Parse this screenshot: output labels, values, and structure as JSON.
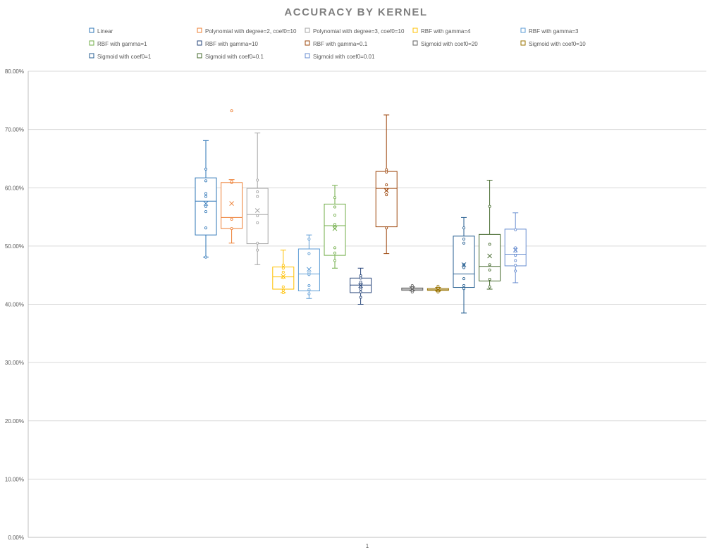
{
  "chart_data": {
    "type": "box",
    "title": "ACCURACY BY KERNEL",
    "categories": [
      "1"
    ],
    "xlabel": "",
    "ylabel": "",
    "ylim": [
      0,
      0.8
    ],
    "y_ticks": [
      0,
      0.1,
      0.2,
      0.3,
      0.4,
      0.5,
      0.6,
      0.7,
      0.8
    ],
    "y_tick_labels": [
      "0.00%",
      "10.00%",
      "20.00%",
      "30.00%",
      "40.00%",
      "50.00%",
      "60.00%",
      "70.00%",
      "80.00%"
    ],
    "grid": true,
    "legend_position": "top",
    "series": [
      {
        "name": "Linear",
        "color": "#2e75b6",
        "whisker_low": 0.481,
        "q1": 0.519,
        "median": 0.577,
        "q3": 0.617,
        "whisker_high": 0.681,
        "mean": 0.573,
        "outliers": [],
        "points": [
          0.481,
          0.531,
          0.559,
          0.568,
          0.585,
          0.59,
          0.612,
          0.632
        ]
      },
      {
        "name": "Polynomial with degree=2,  coef0=10",
        "color": "#ed7d31",
        "whisker_low": 0.505,
        "q1": 0.53,
        "median": 0.549,
        "q3": 0.609,
        "whisker_high": 0.614,
        "mean": 0.573,
        "outliers": [
          0.732
        ],
        "points": [
          0.53,
          0.546,
          0.609,
          0.611
        ]
      },
      {
        "name": "Polynomial with degree=3,  coef0=10",
        "color": "#a5a5a5",
        "whisker_low": 0.468,
        "q1": 0.504,
        "median": 0.554,
        "q3": 0.599,
        "whisker_high": 0.694,
        "mean": 0.561,
        "outliers": [],
        "points": [
          0.493,
          0.505,
          0.54,
          0.552,
          0.585,
          0.593,
          0.613
        ]
      },
      {
        "name": "RBF with gamma=4",
        "color": "#ffc000",
        "whisker_low": 0.42,
        "q1": 0.426,
        "median": 0.447,
        "q3": 0.464,
        "whisker_high": 0.493,
        "mean": 0.448,
        "outliers": [],
        "points": [
          0.42,
          0.424,
          0.43,
          0.446,
          0.455,
          0.462,
          0.467
        ]
      },
      {
        "name": "RBF with gamma=3",
        "color": "#5b9bd5",
        "whisker_low": 0.41,
        "q1": 0.423,
        "median": 0.452,
        "q3": 0.495,
        "whisker_high": 0.519,
        "mean": 0.46,
        "outliers": [],
        "points": [
          0.418,
          0.425,
          0.432,
          0.451,
          0.454,
          0.487,
          0.512
        ]
      },
      {
        "name": "RBF with gamma=1",
        "color": "#70ad47",
        "whisker_low": 0.462,
        "q1": 0.484,
        "median": 0.535,
        "q3": 0.572,
        "whisker_high": 0.604,
        "mean": 0.53,
        "outliers": [],
        "points": [
          0.475,
          0.488,
          0.497,
          0.532,
          0.537,
          0.553,
          0.567,
          0.583
        ]
      },
      {
        "name": "RBF with gamma=10",
        "color": "#264478",
        "whisker_low": 0.4,
        "q1": 0.42,
        "median": 0.433,
        "q3": 0.445,
        "whisker_high": 0.462,
        "mean": 0.432,
        "outliers": [],
        "points": [
          0.412,
          0.421,
          0.426,
          0.43,
          0.435,
          0.438,
          0.445,
          0.449
        ]
      },
      {
        "name": "RBF with gamma=0.1",
        "color": "#9e480e",
        "whisker_low": 0.487,
        "q1": 0.533,
        "median": 0.599,
        "q3": 0.628,
        "whisker_high": 0.725,
        "mean": 0.595,
        "outliers": [],
        "points": [
          0.531,
          0.588,
          0.597,
          0.605,
          0.627,
          0.631
        ]
      },
      {
        "name": "Sigmoid with coef0=20",
        "color": "#636363",
        "whisker_low": 0.423,
        "q1": 0.424,
        "median": 0.426,
        "q3": 0.428,
        "whisker_high": 0.43,
        "mean": 0.426,
        "outliers": [],
        "points": [
          0.421,
          0.424,
          0.428,
          0.432
        ]
      },
      {
        "name": "Sigmoid with coef0=10",
        "color": "#997300",
        "whisker_low": 0.423,
        "q1": 0.424,
        "median": 0.425,
        "q3": 0.427,
        "whisker_high": 0.429,
        "mean": 0.425,
        "outliers": [],
        "points": [
          0.421,
          0.424,
          0.427,
          0.431
        ]
      },
      {
        "name": "Sigmoid with coef0=1",
        "color": "#255e91",
        "whisker_low": 0.385,
        "q1": 0.429,
        "median": 0.452,
        "q3": 0.517,
        "whisker_high": 0.549,
        "mean": 0.468,
        "outliers": [],
        "points": [
          0.427,
          0.432,
          0.444,
          0.463,
          0.468,
          0.505,
          0.512,
          0.531
        ]
      },
      {
        "name": "Sigmoid with coef0=0.1",
        "color": "#43682b",
        "whisker_low": 0.426,
        "q1": 0.44,
        "median": 0.465,
        "q3": 0.52,
        "whisker_high": 0.613,
        "mean": 0.483,
        "outliers": [],
        "points": [
          0.43,
          0.443,
          0.459,
          0.468,
          0.503,
          0.568
        ]
      },
      {
        "name": "Sigmoid with coef0=0.01",
        "color": "#698ed0",
        "whisker_low": 0.437,
        "q1": 0.466,
        "median": 0.486,
        "q3": 0.529,
        "whisker_high": 0.557,
        "mean": 0.493,
        "outliers": [],
        "points": [
          0.457,
          0.467,
          0.475,
          0.484,
          0.491,
          0.497,
          0.528
        ]
      }
    ]
  }
}
